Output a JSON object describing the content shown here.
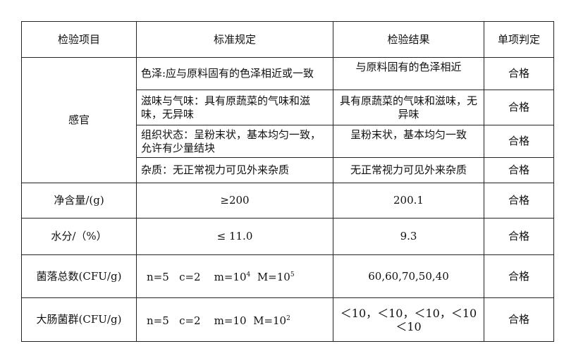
{
  "headers": [
    "检验项目",
    "标准规定",
    "检验结果",
    "单项判定"
  ],
  "sensory": {
    "item": "感官",
    "rows": [
      {
        "standard": "色泽:应与原料固有的色泽相近或一致",
        "result": "与原料固有的色泽相近",
        "judgement": "合格"
      },
      {
        "standard": "滋味与气味：具有原蔬菜的气味和滋味，无异味",
        "result": "具有原蔬菜的气味和滋味，无异味",
        "judgement": "合格"
      },
      {
        "standard": "组织状态：呈粉末状，基本均匀一致，允许有少量结块",
        "result": "呈粉末状，基本均匀一致",
        "judgement": "合格"
      },
      {
        "standard": "杂质：无正常视力可见外来杂质",
        "result": "无正常视力可见外来杂质",
        "judgement": "合格"
      }
    ]
  },
  "net": {
    "item": "净含量/(g)",
    "standard": "≥200",
    "result": "200.1",
    "judgement": "合格"
  },
  "water": {
    "item": "水分/（%）",
    "standard": "≤ 11.0",
    "result": "9.3",
    "judgement": "合格"
  },
  "colony": {
    "item": "菌落总数(CFU/g)",
    "std_a": "n=5   c=2    m=10",
    "std_a_exp": "4",
    "std_b": "  M=10",
    "std_b_exp": "5",
    "result": "60,60,70,50,40",
    "judgement": "合格"
  },
  "coliform": {
    "item": "大肠菌群(CFU/g)",
    "std_a": "n=5   c=2    m=10",
    "std_b": "  M=10",
    "std_b_exp": "2",
    "result": "＜10，＜10，＜10，＜10 ＜10",
    "judgement": "合格"
  }
}
